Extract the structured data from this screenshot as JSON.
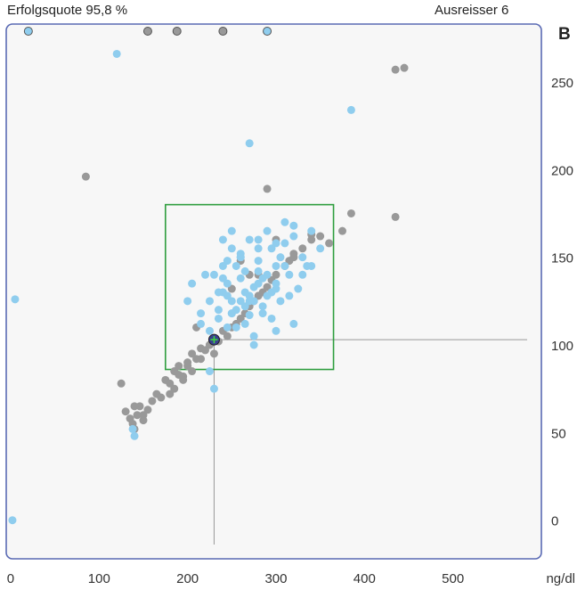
{
  "header": {
    "left": "Erfolgsquote 95,8 %",
    "right": "Ausreisser 6",
    "panel_letter": "B"
  },
  "colors": {
    "frame": "#5a6ab4",
    "plot_bg": "#f7f7f7",
    "target_box": "#2e9e3e",
    "series_gray": "#999999",
    "series_blue": "#8fcdee",
    "reference_lines": "#999999"
  },
  "chart_data": {
    "type": "scatter",
    "title": "",
    "xlabel": "ng/dl",
    "ylabel": "",
    "x_unit_label": "ng/dl",
    "xlim": [
      -5,
      600
    ],
    "ylim": [
      -22,
      283
    ],
    "x_ticks": [
      0,
      100,
      200,
      300,
      400,
      500
    ],
    "y_ticks": [
      0,
      50,
      100,
      150,
      200,
      250
    ],
    "grid": false,
    "legend": "none",
    "target_box": {
      "x": [
        175,
        365
      ],
      "y": [
        86,
        180
      ]
    },
    "reference": {
      "x": 230,
      "y": 103
    },
    "target_marker": {
      "x": 230,
      "y": 103
    },
    "outliers_top": [
      {
        "x": 20,
        "color": "blue"
      },
      {
        "x": 155,
        "color": "gray"
      },
      {
        "x": 188,
        "color": "gray"
      },
      {
        "x": 240,
        "color": "gray"
      },
      {
        "x": 290,
        "color": "blue"
      }
    ],
    "series": [
      {
        "color": "gray",
        "x": [
          130,
          135,
          138,
          140,
          143,
          146,
          150,
          155,
          160,
          165,
          170,
          175,
          180,
          185,
          190,
          195,
          200,
          205,
          210,
          215,
          220,
          225,
          235,
          240,
          245,
          250,
          255,
          260,
          265,
          270,
          275,
          280,
          285,
          290,
          295,
          300,
          310,
          315,
          320,
          330,
          340,
          350,
          360,
          375,
          385,
          435,
          445,
          435,
          140,
          85,
          290,
          125,
          150,
          185,
          200,
          190,
          230,
          280,
          320,
          340,
          260,
          250,
          270,
          300,
          215,
          205,
          225,
          180,
          195,
          210
        ],
        "y": [
          62,
          58,
          55,
          52,
          60,
          65,
          57,
          63,
          68,
          72,
          70,
          80,
          78,
          85,
          88,
          82,
          90,
          95,
          92,
          98,
          97,
          100,
          102,
          108,
          105,
          110,
          112,
          115,
          118,
          122,
          125,
          128,
          130,
          133,
          137,
          140,
          145,
          148,
          152,
          155,
          160,
          162,
          158,
          165,
          175,
          173,
          258,
          257,
          65,
          196,
          189,
          78,
          60,
          75,
          88,
          83,
          95,
          140,
          150,
          163,
          148,
          132,
          140,
          160,
          92,
          85,
          100,
          72,
          80,
          110
        ]
      },
      {
        "color": "blue",
        "x": [
          120,
          5,
          2,
          270,
          385,
          138,
          140,
          230,
          225,
          275,
          300,
          320,
          250,
          260,
          240,
          280,
          290,
          310,
          330,
          350,
          270,
          250,
          230,
          245,
          265,
          285,
          305,
          325,
          255,
          275,
          295,
          315,
          235,
          215,
          200,
          205,
          220,
          240,
          260,
          280,
          300,
          320,
          340,
          335,
          315,
          295,
          275,
          255,
          235,
          225,
          245,
          265,
          285,
          305,
          280,
          260,
          240,
          290,
          310,
          270,
          250,
          300,
          330,
          265,
          245,
          285,
          255,
          275,
          295,
          235,
          215,
          225,
          320,
          340,
          310,
          260,
          280,
          300,
          250,
          270,
          290,
          240,
          230,
          260,
          280,
          300,
          250,
          270,
          245,
          265
        ],
        "y": [
          266,
          126,
          0,
          215,
          234,
          52,
          48,
          75,
          85,
          100,
          108,
          112,
          118,
          125,
          130,
          135,
          140,
          145,
          150,
          155,
          160,
          165,
          140,
          128,
          122,
          118,
          125,
          132,
          110,
          105,
          115,
          128,
          120,
          112,
          125,
          135,
          140,
          145,
          150,
          155,
          158,
          162,
          165,
          145,
          140,
          130,
          125,
          120,
          115,
          108,
          135,
          142,
          138,
          150,
          148,
          152,
          160,
          165,
          170,
          128,
          118,
          132,
          140,
          112,
          110,
          122,
          145,
          133,
          155,
          130,
          118,
          125,
          168,
          145,
          158,
          138,
          142,
          135,
          125,
          117,
          128,
          138,
          103,
          150,
          160,
          145,
          155,
          125,
          148,
          130
        ]
      }
    ]
  }
}
